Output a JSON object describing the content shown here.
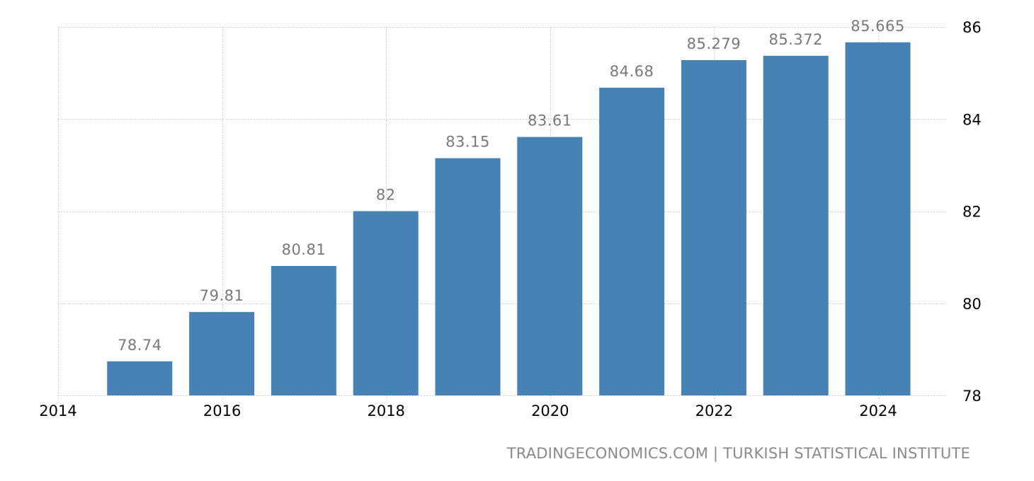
{
  "chart_data": {
    "type": "bar",
    "title": "",
    "xlabel": "",
    "ylabel": "",
    "categories": [
      "2015",
      "2016",
      "2017",
      "2018",
      "2019",
      "2020",
      "2021",
      "2022",
      "2023",
      "2024"
    ],
    "values": [
      78.74,
      79.81,
      80.81,
      82,
      83.15,
      83.61,
      84.68,
      85.279,
      85.372,
      85.665
    ],
    "value_labels": [
      "78.74",
      "79.81",
      "80.81",
      "82",
      "83.15",
      "83.61",
      "84.68",
      "85.279",
      "85.372",
      "85.665"
    ],
    "ylim": [
      78,
      86
    ],
    "y_ticks": [
      "78",
      "80",
      "82",
      "84",
      "86"
    ],
    "x_ticks": [
      "2014",
      "2016",
      "2018",
      "2020",
      "2022",
      "2024"
    ],
    "y_axis_position": "right",
    "grid": true,
    "bar_color": "#4682b4",
    "label_color": "#787878"
  },
  "footer": {
    "source": "TRADINGECONOMICS.COM | TURKISH STATISTICAL INSTITUTE"
  }
}
